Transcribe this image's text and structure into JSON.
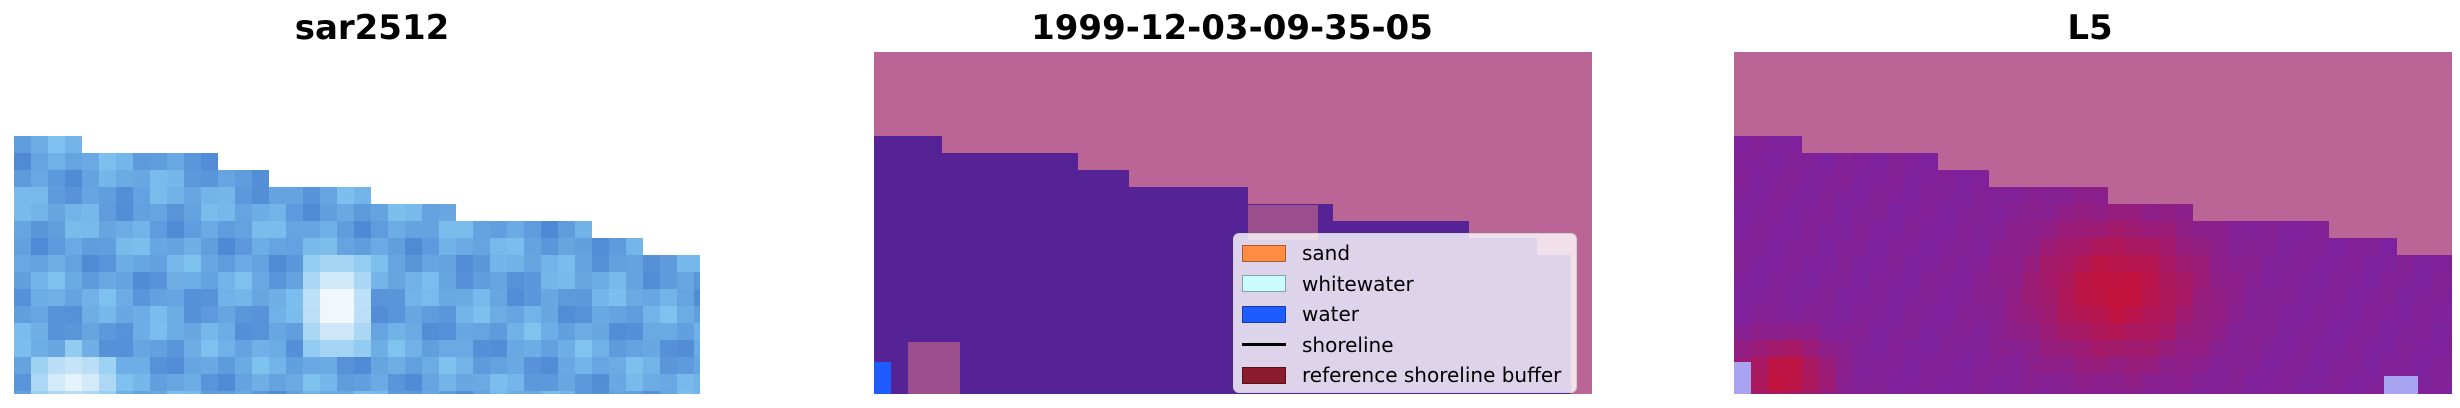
{
  "panels": [
    {
      "title": "sar2512"
    },
    {
      "title": "1999-12-03-09-35-05"
    },
    {
      "title": "L5"
    }
  ],
  "legend": {
    "entries": [
      {
        "label": "sand",
        "color": "#ff8c42",
        "kind": "patch",
        "icon": "sand-swatch"
      },
      {
        "label": "whitewater",
        "color": "#c9fbff",
        "kind": "patch",
        "icon": "whitewater-swatch"
      },
      {
        "label": "water",
        "color": "#1f5cff",
        "kind": "patch",
        "icon": "water-swatch"
      },
      {
        "label": "shoreline",
        "color": "#000000",
        "kind": "line",
        "icon": "shoreline-line"
      },
      {
        "label": "reference shoreline buffer",
        "color": "#8b1a2c",
        "kind": "patch",
        "icon": "buffer-swatch"
      }
    ]
  },
  "colors": {
    "image_blue": "#4f88d4",
    "image_light_blue": "#7fc3ef",
    "land_pink": "#ba6595",
    "water_purple": "#552396",
    "land_dark_pink": "#9a4f8c",
    "probability_purple": "#7c22a0",
    "probability_red": "#c2123c",
    "probability_lavender": "#a9a4f2"
  }
}
